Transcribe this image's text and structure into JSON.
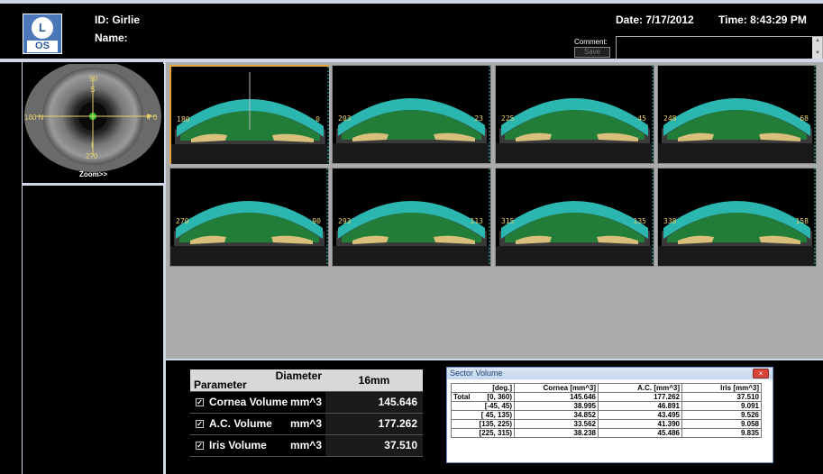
{
  "header": {
    "logo_letter": "L",
    "logo_eye": "OS",
    "id_text": "ID: Girlie",
    "name_text": "Name:",
    "date_text": "Date: 7/17/2012",
    "time_text": "Time: 8:43:29 PM",
    "comment_label": "Comment:",
    "save_label": "Save",
    "comment_value": ""
  },
  "eye_view": {
    "top_label": "90",
    "s_label": "S",
    "left_label": "180 N",
    "right_label": "T 0",
    "i_label": "I",
    "bottom_label": "270",
    "zoom_label": "Zoom>>"
  },
  "thumbnails": [
    {
      "left": "180",
      "right": "0",
      "selected": true
    },
    {
      "left": "203",
      "right": "23",
      "selected": false
    },
    {
      "left": "225",
      "right": "45",
      "selected": false
    },
    {
      "left": "248",
      "right": "68",
      "selected": false
    },
    {
      "left": "270",
      "right": "90",
      "selected": false
    },
    {
      "left": "293",
      "right": "113",
      "selected": false
    },
    {
      "left": "315",
      "right": "135",
      "selected": false
    },
    {
      "left": "338",
      "right": "158",
      "selected": false
    }
  ],
  "params": {
    "header_param": "Parameter",
    "header_diameter": "Diameter",
    "header_size": "16mm",
    "rows": [
      {
        "label": "Cornea Volume",
        "unit": "mm^3",
        "value": "145.646"
      },
      {
        "label": "A.C. Volume",
        "unit": "mm^3",
        "value": "177.262"
      },
      {
        "label": "Iris Volume",
        "unit": "mm^3",
        "value": "37.510"
      }
    ]
  },
  "sector": {
    "title": "Sector Volume",
    "close_label": "×",
    "headers": [
      "[deg.]",
      "Cornea [mm^3]",
      "A.C. [mm^3]",
      "Iris [mm^3]"
    ],
    "rows": [
      {
        "prefix": "Total",
        "range": "[0, 360)",
        "cornea": "145.646",
        "ac": "177.262",
        "iris": "37.510"
      },
      {
        "prefix": "",
        "range": "[-45, 45)",
        "cornea": "38.995",
        "ac": "46.891",
        "iris": "9.091"
      },
      {
        "prefix": "",
        "range": "[ 45, 135)",
        "cornea": "34.852",
        "ac": "43.495",
        "iris": "9.526"
      },
      {
        "prefix": "",
        "range": "[135, 225)",
        "cornea": "33.562",
        "ac": "41.390",
        "iris": "9.058"
      },
      {
        "prefix": "",
        "range": "[225, 315)",
        "cornea": "38.238",
        "ac": "45.486",
        "iris": "9.835"
      }
    ]
  }
}
